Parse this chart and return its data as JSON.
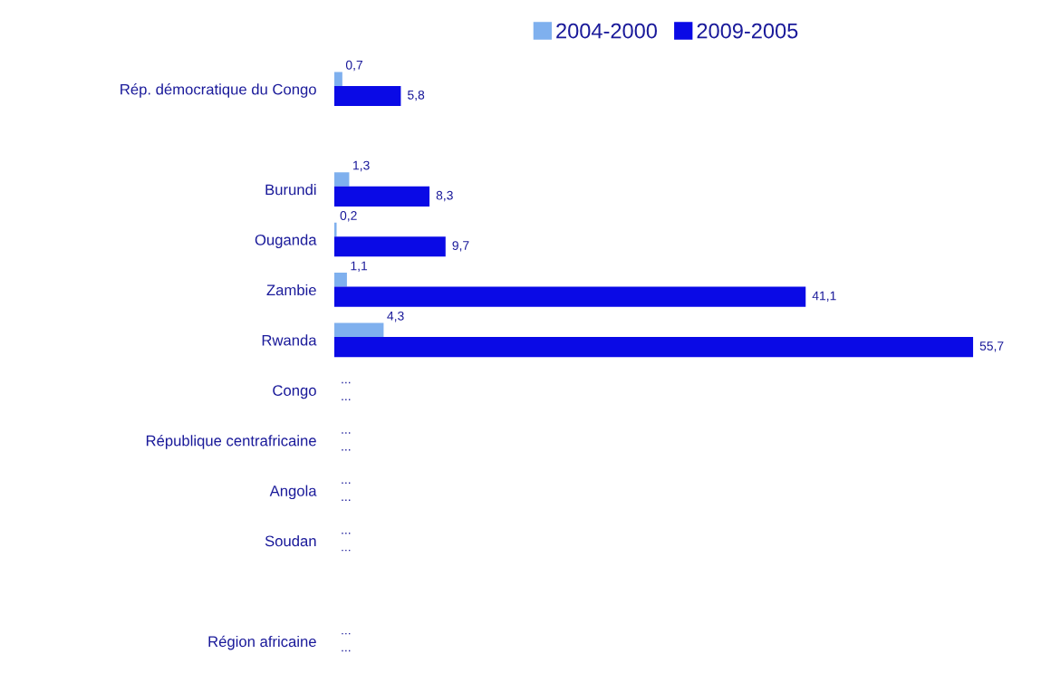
{
  "chart_data": {
    "type": "bar",
    "orientation": "horizontal",
    "legend": "top",
    "grid": false,
    "tick_labels": "y",
    "categories": [
      "Rép. démocratique du Congo",
      null,
      "Burundi",
      "Ouganda",
      "Zambie",
      "Rwanda",
      "Congo",
      "République centrafricaine",
      "Angola",
      "Soudan",
      null,
      "Région africaine"
    ],
    "series": [
      {
        "name": "2004-2000",
        "color": "#7fb0ee",
        "values": [
          0.7,
          null,
          1.3,
          0.2,
          1.1,
          4.3,
          null,
          null,
          null,
          null,
          null,
          null
        ],
        "value_labels": [
          "0,7",
          null,
          "1,3",
          "0,2",
          "1,1",
          "4,3",
          "...",
          "...",
          "...",
          "...",
          null,
          "..."
        ]
      },
      {
        "name": "2009-2005",
        "color": "#0a0ae6",
        "values": [
          5.8,
          null,
          8.3,
          9.7,
          41.1,
          55.7,
          null,
          null,
          null,
          null,
          null,
          null
        ],
        "value_labels": [
          "5,8",
          null,
          "8,3",
          "9,7",
          "41,1",
          "55,7",
          "...",
          "...",
          "...",
          "...",
          null,
          "..."
        ]
      }
    ]
  }
}
